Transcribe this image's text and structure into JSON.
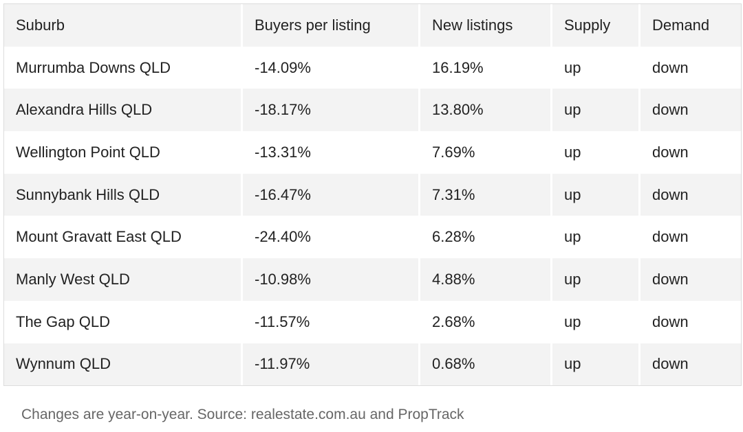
{
  "table": {
    "headers": [
      "Suburb",
      "Buyers per listing",
      "New listings",
      "Supply",
      "Demand"
    ],
    "rows": [
      [
        "Murrumba Downs QLD",
        "-14.09%",
        "16.19%",
        "up",
        "down"
      ],
      [
        "Alexandra Hills QLD",
        "-18.17%",
        "13.80%",
        "up",
        "down"
      ],
      [
        "Wellington Point QLD",
        "-13.31%",
        "7.69%",
        "up",
        "down"
      ],
      [
        "Sunnybank Hills QLD",
        "-16.47%",
        "7.31%",
        "up",
        "down"
      ],
      [
        "Mount Gravatt East QLD",
        "-24.40%",
        "6.28%",
        "up",
        "down"
      ],
      [
        "Manly West QLD",
        "-10.98%",
        "4.88%",
        "up",
        "down"
      ],
      [
        "The Gap QLD",
        "-11.57%",
        "2.68%",
        "up",
        "down"
      ],
      [
        "Wynnum QLD",
        "-11.97%",
        "0.68%",
        "up",
        "down"
      ]
    ]
  },
  "caption": "Changes are year-on-year. Source: realestate.com.au and PropTrack"
}
